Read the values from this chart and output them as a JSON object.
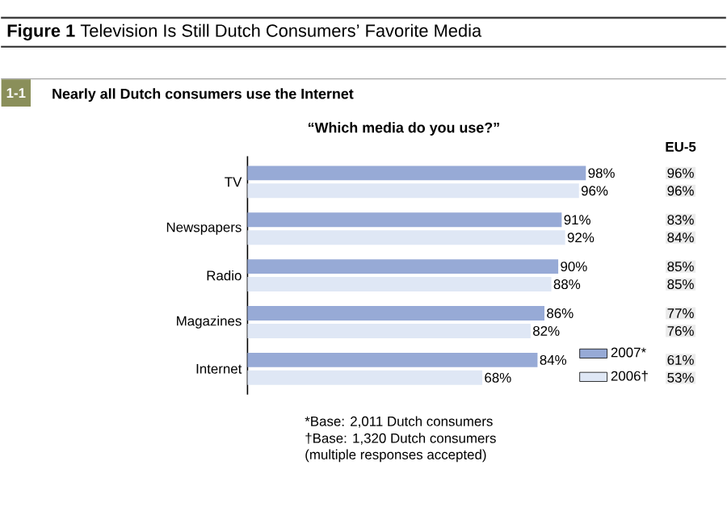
{
  "chart_data": {
    "type": "bar",
    "orientation": "horizontal",
    "title": "**Figure 1** Television Is Still Dutch Consumers’ Favorite Media",
    "subtitle": "Nearly all Dutch consumers use the Internet",
    "categories": [
      "TV",
      "Newspapers",
      "Radio",
      "Magazines",
      "Internet"
    ],
    "series": [
      {
        "name": "2007*",
        "color": "#97aad6",
        "values": [
          98,
          91,
          90,
          86,
          84
        ],
        "value_labels": [
          "98%",
          "91%",
          "90%",
          "86%",
          "84%"
        ]
      },
      {
        "name": "2006†",
        "color": "#dfe7f5",
        "values": [
          96,
          92,
          88,
          82,
          68
        ],
        "value_labels": [
          "96%",
          "92%",
          "88%",
          "82%",
          "68%"
        ]
      }
    ],
    "tick_labels": "y",
    "legend": "bottom right",
    "annotations": [
      "1-1",
      "“Which media do you use?”",
      "EU-5",
      "96%",
      "96%",
      "83%",
      "84%",
      "85%",
      "85%",
      "77%",
      "76%",
      "61%",
      "53%",
      "*Base: 2,011 Dutch consumers",
      "†Base: 1,320 Dutch consumers",
      "(multiple responses accepted)"
    ]
  }
}
